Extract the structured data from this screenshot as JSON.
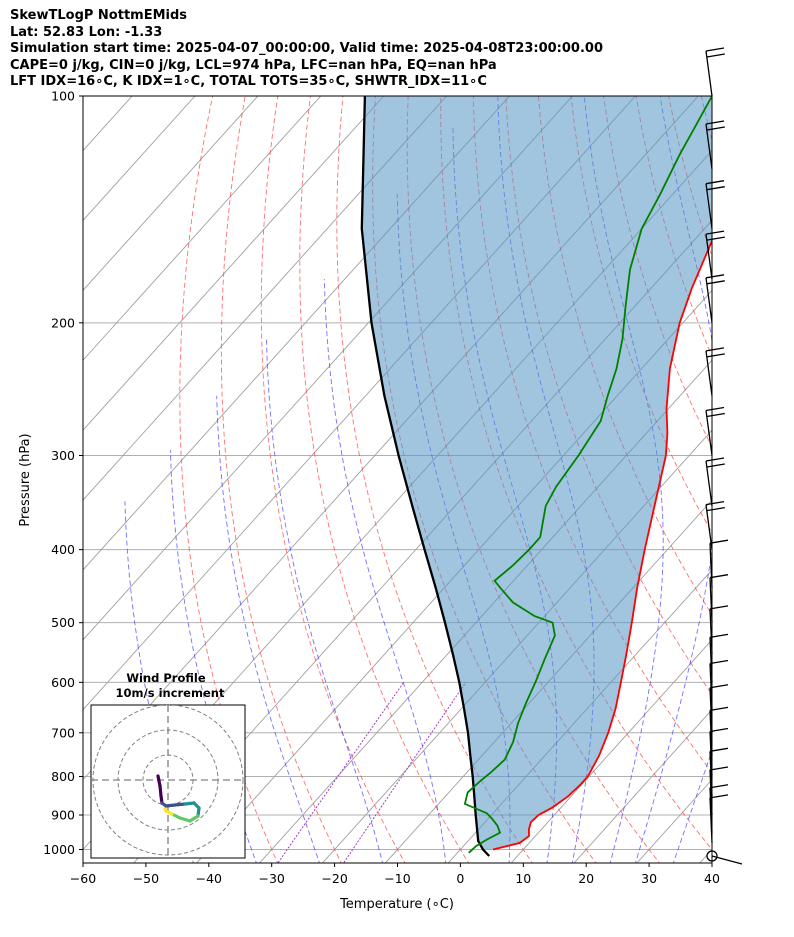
{
  "header": {
    "line1": "SkewTLogP NottmEMids",
    "line2": "Lat: 52.83   Lon: -1.33",
    "line3": "Simulation start time: 2025-04-07_00:00:00, Valid time: 2025-04-08T23:00:00.00",
    "line4": "CAPE=0 j/kg, CIN=0 j/kg, LCL=974 hPa, LFC=nan hPa, EQ=nan hPa",
    "line5": "LFT IDX=16∘C, K IDX=1∘C, TOTAL TOTS=35∘C, SHWTR_IDX=11∘C"
  },
  "chart_data": {
    "type": "line",
    "subtype": "skew-T log-P",
    "xlabel": "Temperature (∘C)",
    "ylabel": "Pressure (hPa)",
    "xlim": [
      -60,
      40
    ],
    "ylim": [
      1050,
      100
    ],
    "y_scale": "log",
    "x_ticks": [
      -60,
      -50,
      -40,
      -30,
      -20,
      -10,
      0,
      10,
      20,
      30,
      40
    ],
    "y_ticks": [
      1000,
      900,
      800,
      700,
      600,
      500,
      400,
      300,
      200,
      100
    ],
    "grid": true,
    "series": [
      {
        "role": "temperature",
        "color": "#ff0000",
        "points": [
          [
            1000,
            5.2
          ],
          [
            980,
            8.5
          ],
          [
            960,
            9.0
          ],
          [
            940,
            8.0
          ],
          [
            920,
            7.3
          ],
          [
            900,
            7.5
          ],
          [
            880,
            8.6
          ],
          [
            850,
            9.5
          ],
          [
            820,
            9.8
          ],
          [
            800,
            9.8
          ],
          [
            750,
            8.6
          ],
          [
            700,
            6.8
          ],
          [
            650,
            4.5
          ],
          [
            600,
            1.6
          ],
          [
            550,
            -1.6
          ],
          [
            500,
            -5.2
          ],
          [
            450,
            -9.3
          ],
          [
            400,
            -13.6
          ],
          [
            350,
            -18.3
          ],
          [
            300,
            -23.7
          ],
          [
            280,
            -26.7
          ],
          [
            260,
            -30.3
          ],
          [
            230,
            -35.5
          ],
          [
            200,
            -40.5
          ],
          [
            180,
            -43.5
          ],
          [
            150,
            -48.0
          ],
          [
            130,
            -51.5
          ],
          [
            110,
            -55.5
          ],
          [
            100,
            -57.5
          ]
        ]
      },
      {
        "role": "dewpoint",
        "color": "#008000",
        "points": [
          [
            1010,
            1.8
          ],
          [
            990,
            2.0
          ],
          [
            970,
            2.8
          ],
          [
            950,
            3.9
          ],
          [
            930,
            2.5
          ],
          [
            910,
            0.6
          ],
          [
            895,
            -1.0
          ],
          [
            870,
            -5.8
          ],
          [
            840,
            -7.0
          ],
          [
            810,
            -6.6
          ],
          [
            790,
            -6.2
          ],
          [
            760,
            -5.8
          ],
          [
            720,
            -7.0
          ],
          [
            680,
            -8.9
          ],
          [
            640,
            -10.5
          ],
          [
            600,
            -12.0
          ],
          [
            560,
            -13.8
          ],
          [
            520,
            -15.6
          ],
          [
            500,
            -17.8
          ],
          [
            490,
            -21.6
          ],
          [
            470,
            -27.0
          ],
          [
            450,
            -31.0
          ],
          [
            440,
            -33.0
          ],
          [
            420,
            -32.3
          ],
          [
            400,
            -32.0
          ],
          [
            385,
            -32.0
          ],
          [
            350,
            -35.6
          ],
          [
            330,
            -36.7
          ],
          [
            300,
            -37.6
          ],
          [
            270,
            -39.0
          ],
          [
            250,
            -41.5
          ],
          [
            230,
            -44.0
          ],
          [
            210,
            -47.3
          ],
          [
            190,
            -51.5
          ],
          [
            170,
            -56.0
          ],
          [
            150,
            -60.0
          ],
          [
            135,
            -62.0
          ],
          [
            120,
            -64.5
          ],
          [
            100,
            -67.8
          ]
        ]
      },
      {
        "role": "parcel",
        "color": "#000000",
        "points": [
          [
            1020,
            5.5
          ],
          [
            1000,
            3.6
          ],
          [
            974,
            1.6
          ],
          [
            950,
            0.3
          ],
          [
            900,
            -2.5
          ],
          [
            850,
            -5.4
          ],
          [
            800,
            -8.5
          ],
          [
            750,
            -11.9
          ],
          [
            700,
            -15.5
          ],
          [
            650,
            -19.6
          ],
          [
            600,
            -24.1
          ],
          [
            550,
            -29.2
          ],
          [
            500,
            -34.9
          ],
          [
            450,
            -41.3
          ],
          [
            400,
            -48.6
          ],
          [
            350,
            -56.8
          ],
          [
            300,
            -66.2
          ],
          [
            250,
            -77.0
          ],
          [
            200,
            -89.5
          ],
          [
            150,
            -104.5
          ],
          [
            100,
            -123.0
          ]
        ]
      }
    ],
    "wind_barbs": {
      "levels": [
        1020,
        980,
        950,
        900,
        850,
        800,
        750,
        700,
        650,
        600,
        550,
        500,
        450,
        400,
        350,
        300,
        250,
        200,
        175,
        150,
        125,
        100
      ]
    },
    "inset": {
      "title": "Wind Profile",
      "subtitle": "10m/s increment",
      "colormap": [
        "#440154",
        "#3b528b",
        "#21918c",
        "#5ec962",
        "#fde725"
      ]
    }
  }
}
